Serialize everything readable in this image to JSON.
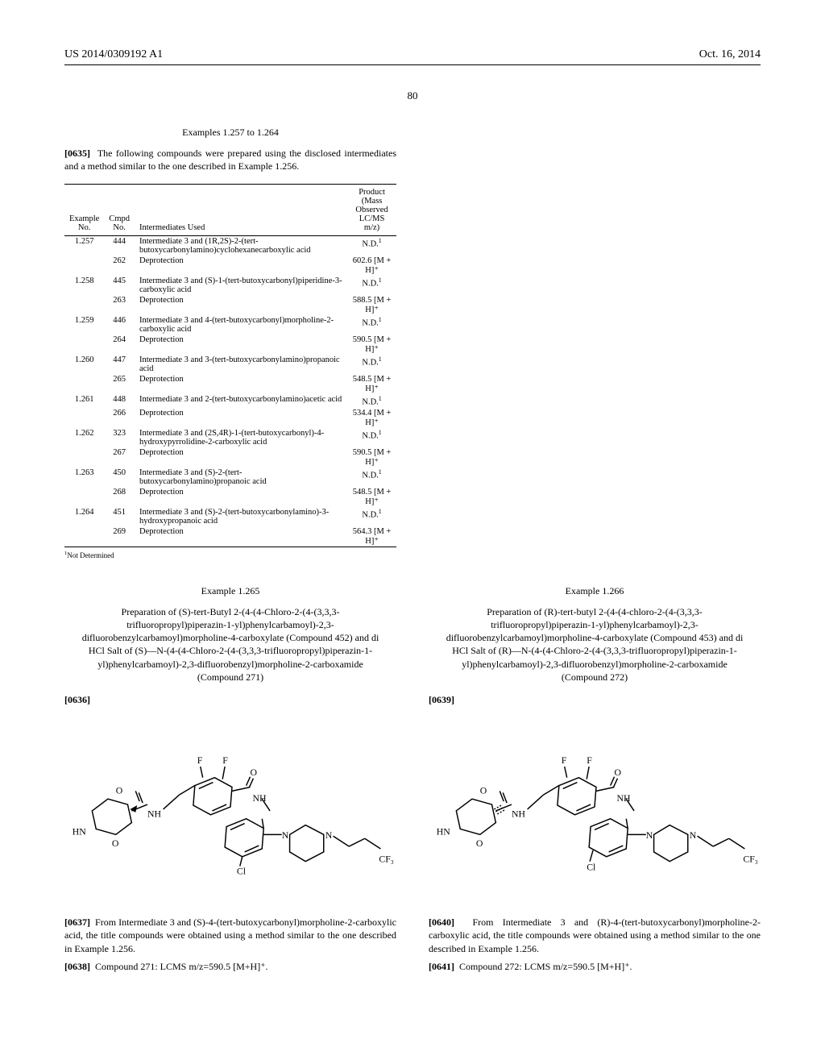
{
  "header": {
    "doc_number": "US 2014/0309192 A1",
    "date": "Oct. 16, 2014"
  },
  "page_number": "80",
  "intro": {
    "heading": "Examples 1.257 to 1.264",
    "para_num": "[0635]",
    "para_text": "The following compounds were prepared using the disclosed intermediates and a method similar to the one described in Example 1.256."
  },
  "table": {
    "headers": {
      "col1": "Example\nNo.",
      "col2": "Cmpd\nNo.",
      "col3": "Intermediates Used",
      "col4": "Product\n(Mass Observed\nLC/MS m/z)"
    },
    "rows": [
      {
        "ex": "1.257",
        "cmpd": "444",
        "inter": "Intermediate 3 and (1R,2S)-2-(tert-butoxycarbonylamino)cyclohexanecarboxylic acid",
        "prod": "N.D.",
        "sup": "1"
      },
      {
        "ex": "",
        "cmpd": "262",
        "inter": "Deprotection",
        "prod": "602.6 [M + H]⁺",
        "sup": ""
      },
      {
        "ex": "1.258",
        "cmpd": "445",
        "inter": "Intermediate 3 and (S)-1-(tert-butoxycarbonyl)piperidine-3-carboxylic acid",
        "prod": "N.D.",
        "sup": "1"
      },
      {
        "ex": "",
        "cmpd": "263",
        "inter": "Deprotection",
        "prod": "588.5 [M + H]⁺",
        "sup": ""
      },
      {
        "ex": "1.259",
        "cmpd": "446",
        "inter": "Intermediate 3 and 4-(tert-butoxycarbonyl)morpholine-2-carboxylic acid",
        "prod": "N.D.",
        "sup": "1"
      },
      {
        "ex": "",
        "cmpd": "264",
        "inter": "Deprotection",
        "prod": "590.5 [M + H]⁺",
        "sup": ""
      },
      {
        "ex": "1.260",
        "cmpd": "447",
        "inter": "Intermediate 3 and 3-(tert-butoxycarbonylamino)propanoic acid",
        "prod": "N.D.",
        "sup": "1"
      },
      {
        "ex": "",
        "cmpd": "265",
        "inter": "Deprotection",
        "prod": "548.5 [M + H]⁺",
        "sup": ""
      },
      {
        "ex": "1.261",
        "cmpd": "448",
        "inter": "Intermediate 3 and 2-(tert-butoxycarbonylamino)acetic acid",
        "prod": "N.D.",
        "sup": "1"
      },
      {
        "ex": "",
        "cmpd": "266",
        "inter": "Deprotection",
        "prod": "534.4 [M + H]⁺",
        "sup": ""
      },
      {
        "ex": "1.262",
        "cmpd": "323",
        "inter": "Intermediate 3 and (2S,4R)-1-(tert-butoxycarbonyl)-4-hydroxypyrrolidine-2-carboxylic acid",
        "prod": "N.D.",
        "sup": "1"
      },
      {
        "ex": "",
        "cmpd": "267",
        "inter": "Deprotection",
        "prod": "590.5 [M + H]⁺",
        "sup": ""
      },
      {
        "ex": "1.263",
        "cmpd": "450",
        "inter": "Intermediate 3 and (S)-2-(tert-butoxycarbonylamino)propanoic acid",
        "prod": "N.D.",
        "sup": "1"
      },
      {
        "ex": "",
        "cmpd": "268",
        "inter": "Deprotection",
        "prod": "548.5 [M + H]⁺",
        "sup": ""
      },
      {
        "ex": "1.264",
        "cmpd": "451",
        "inter": "Intermediate 3 and (S)-2-(tert-butoxycarbonylamino)-3-hydroxypropanoic acid",
        "prod": "N.D.",
        "sup": "1"
      },
      {
        "ex": "",
        "cmpd": "269",
        "inter": "Deprotection",
        "prod": "564.3 [M + H]⁺",
        "sup": ""
      }
    ],
    "footnote_sup": "1",
    "footnote": "Not Determined"
  },
  "left": {
    "example_title": "Example 1.265",
    "prep_title": "Preparation of (S)-tert-Butyl 2-(4-(4-Chloro-2-(4-(3,3,3-trifluoropropyl)piperazin-1-yl)phenylcarbamoyl)-2,3-difluorobenzylcarbamoyl)morpholine-4-carboxylate (Compound 452) and di HCl Salt of (S)—N-(4-(4-Chloro-2-(4-(3,3,3-trifluoropropyl)piperazin-1-yl)phenylcarbamoyl)-2,3-difluorobenzyl)morpholine-2-carboxamide (Compound 271)",
    "para_num_a": "[0636]",
    "para_num_b": "[0637]",
    "para_b": "From Intermediate 3 and (S)-4-(tert-butoxycarbonyl)morpholine-2-carboxylic acid, the title compounds were obtained using a method similar to the one described in Example 1.256.",
    "para_num_c": "[0638]",
    "para_c": "Compound 271: LCMS m/z=590.5 [M+H]⁺."
  },
  "right": {
    "example_title": "Example 1.266",
    "prep_title": "Preparation of (R)-tert-butyl 2-(4-(4-chloro-2-(4-(3,3,3-trifluoropropyl)piperazin-1-yl)phenylcarbamoyl)-2,3-difluorobenzylcarbamoyl)morpholine-4-carboxylate (Compound 453) and di HCl Salt of (R)—N-(4-(4-Chloro-2-(4-(3,3,3-trifluoropropyl)piperazin-1-yl)phenylcarbamoyl)-2,3-difluorobenzyl)morpholine-2-carboxamide (Compound 272)",
    "para_num_a": "[0639]",
    "para_num_b": "[0640]",
    "para_b": "From Intermediate 3 and (R)-4-(tert-butoxycarbonyl)morpholine-2-carboxylic acid, the title compounds were obtained using a method similar to the one described in Example 1.256.",
    "para_num_c": "[0641]",
    "para_c": "Compound 272: LCMS m/z=590.5 [M+H]⁺."
  },
  "structure": {
    "labels": {
      "F1": "F",
      "F2": "F",
      "O1": "O",
      "O2": "O",
      "O3": "O",
      "NH1": "NH",
      "NH2": "NH",
      "HN": "HN",
      "N1": "N",
      "N2": "N",
      "Cl": "Cl",
      "CF3": "CF₃"
    },
    "stroke": "#000000",
    "stroke_width": 1.5,
    "font_size": 12
  }
}
